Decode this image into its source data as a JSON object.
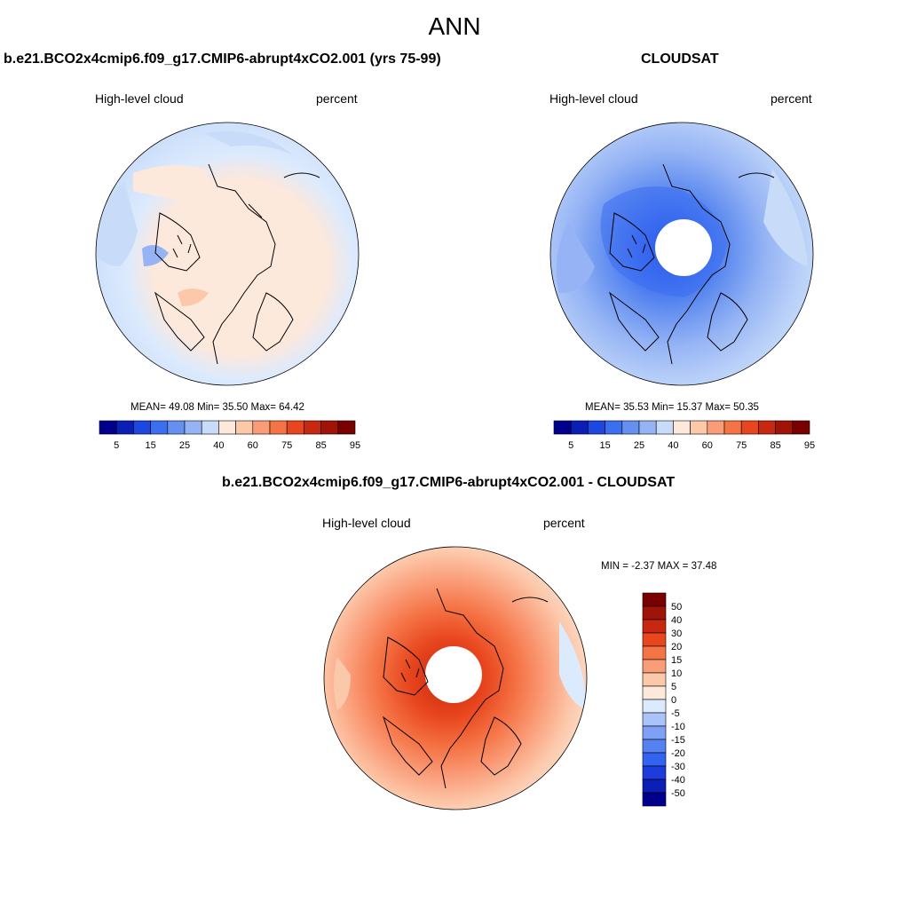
{
  "page": {
    "title": "ANN"
  },
  "panels": [
    {
      "title": "b.e21.BCO2x4cmip6.f09_g17.CMIP6-abrupt4xCO2.001 (yrs 75-99)",
      "left_label": "High-level cloud",
      "right_label": "percent",
      "stats": "MEAN=  49.08  Min=  35.50  Max=  64.42",
      "colorbar": {
        "ticks": [
          "5",
          "15",
          "25",
          "40",
          "60",
          "75",
          "85",
          "95"
        ]
      }
    },
    {
      "title": "CLOUDSAT",
      "left_label": "High-level cloud",
      "right_label": "percent",
      "stats": "MEAN=  35.53  Min=  15.37  Max=  50.35",
      "colorbar": {
        "ticks": [
          "5",
          "15",
          "25",
          "40",
          "60",
          "75",
          "85",
          "95"
        ]
      }
    },
    {
      "title": "b.e21.BCO2x4cmip6.f09_g17.CMIP6-abrupt4xCO2.001 - CLOUDSAT",
      "left_label": "High-level cloud",
      "right_label": "percent",
      "stats": "MIN =  -2.37 MAX =  37.48",
      "colorbar": {
        "ticks": [
          "50",
          "40",
          "30",
          "20",
          "15",
          "10",
          "5",
          "0",
          "-5",
          "-10",
          "-15",
          "-20",
          "-30",
          "-40",
          "-50"
        ]
      }
    }
  ],
  "colors": {
    "abs_scale": [
      "#00008c",
      "#0c1fb4",
      "#1e46e0",
      "#3c6ef0",
      "#6490f0",
      "#96b4f5",
      "#c8dcfa",
      "#fde8dc",
      "#fcc8aa",
      "#fa9c78",
      "#f57446",
      "#e8461e",
      "#c8280f",
      "#a01408",
      "#780000"
    ],
    "diff_scale": [
      "#00008c",
      "#0c1fb4",
      "#1e3cdc",
      "#3264f0",
      "#5582f0",
      "#7ea0f5",
      "#aac4fa",
      "#dceafd",
      "#fde8dc",
      "#fcc8aa",
      "#fa9c78",
      "#f57446",
      "#e8461e",
      "#c8280f",
      "#a01408",
      "#780000"
    ]
  }
}
